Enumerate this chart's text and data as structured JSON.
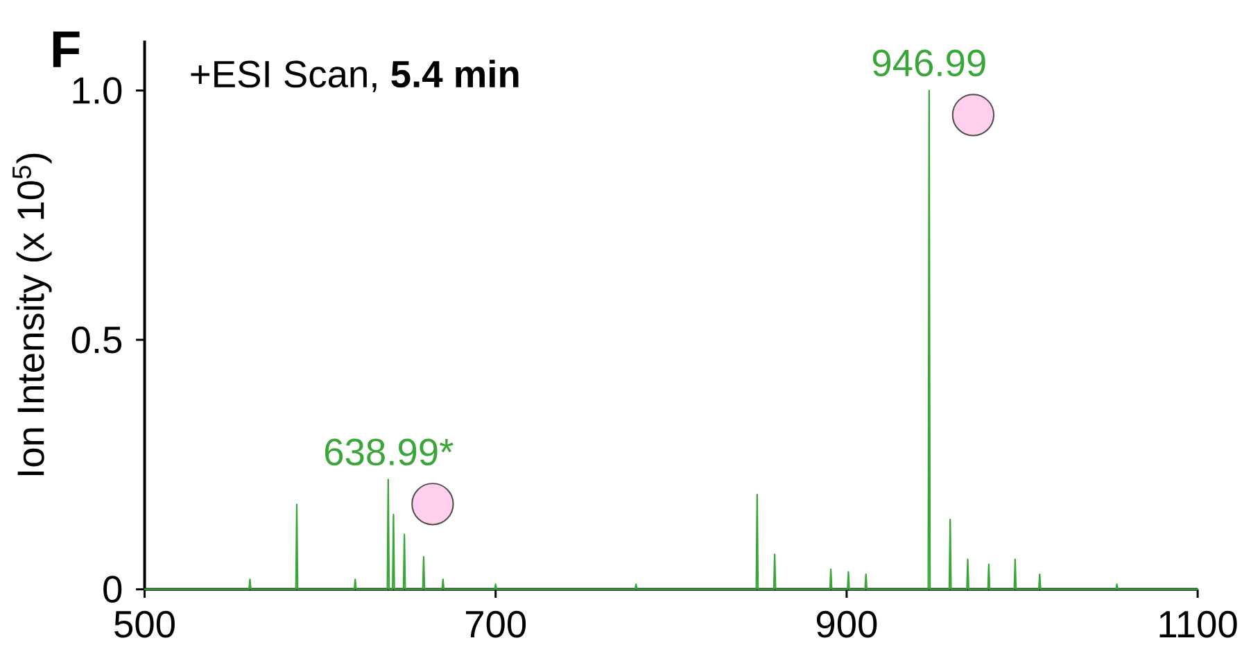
{
  "chart_data": {
    "type": "line",
    "title": "+ESI Scan, **5.4 min**",
    "ylabel": "Ion Intensity (x 10$^{5}$)",
    "xlim": [
      500,
      1100
    ],
    "ylim": [
      0,
      1.1
    ],
    "xticks": [
      500,
      700,
      900,
      1100
    ],
    "yticks": [
      0,
      0.5,
      {
        "value": 1.0,
        "label": "1.0"
      }
    ],
    "grid": false,
    "marker": "none",
    "line_style": "solid",
    "series": [
      {
        "color": "#3aa63a",
        "x": [
          500,
          559.5,
          560,
          560.5,
          586.2,
          586.7,
          587.2,
          619.5,
          620,
          620.5,
          638.3,
          638.8,
          639.3,
          641.3,
          641.8,
          642.3,
          647.5,
          648,
          648.5,
          658.5,
          659,
          659.5,
          669.5,
          670,
          670.5,
          699.5,
          700,
          700.5,
          779.5,
          780,
          780.5,
          848.5,
          849,
          849.5,
          858.5,
          859,
          859.5,
          890.5,
          891,
          891.5,
          900.5,
          901,
          901.5,
          910.5,
          911,
          911.5,
          946.5,
          947,
          947.5,
          958.5,
          959,
          959.5,
          968.5,
          969,
          969.5,
          980.5,
          981,
          981.5,
          995.5,
          996,
          996.5,
          1009.5,
          1010,
          1010.5,
          1053.5,
          1054,
          1054.5,
          1100
        ],
        "values": [
          0,
          0,
          0.02,
          0,
          0,
          0.17,
          0,
          0,
          0.02,
          0,
          0,
          0.22,
          0,
          0,
          0.15,
          0,
          0,
          0.11,
          0,
          0,
          0.065,
          0,
          0,
          0.02,
          0,
          0,
          0.01,
          0,
          0,
          0.01,
          0,
          0,
          0.19,
          0,
          0,
          0.07,
          0,
          0,
          0.04,
          0,
          0,
          0.035,
          0,
          0,
          0.03,
          0,
          0,
          1.0,
          0,
          0,
          0.14,
          0,
          0,
          0.06,
          0,
          0,
          0.05,
          0,
          0,
          0.06,
          0,
          0,
          0.03,
          0,
          0,
          0.01,
          0,
          0
        ]
      }
    ],
    "annotations": [
      "F",
      {
        "text": "946.99",
        "x": 946.99,
        "y": 1.0
      },
      {
        "text": "638.99*",
        "x": 638.99,
        "y": 0.22
      }
    ]
  }
}
